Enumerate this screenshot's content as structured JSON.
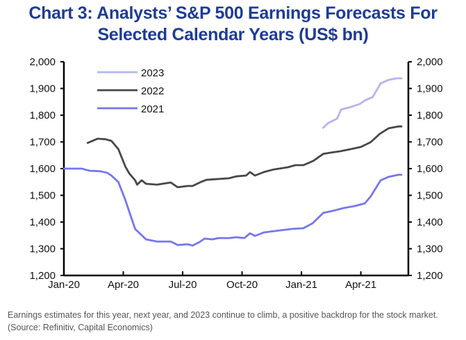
{
  "title_line1": "Chart 3: Analysts’ S&P 500 Earnings Forecasts For",
  "title_line2": "Selected Calendar Years (US$ bn)",
  "caption": "Earnings estimates for this year, next year, and 2023 continue to climb, a positive backdrop for the stock market. (Source: Refinitiv, Capital Economics)",
  "chart_data": {
    "type": "line",
    "title": "Chart 3: Analysts’ S&P 500 Earnings Forecasts For Selected Calendar Years (US$ bn)",
    "xlabel": "",
    "ylabel": "US$ bn",
    "x_unit": "months since Jan-20",
    "xlim": [
      0,
      17.4
    ],
    "ylim": [
      1200,
      2000
    ],
    "y_ticks": [
      1200,
      1300,
      1400,
      1500,
      1600,
      1700,
      1800,
      1900,
      2000
    ],
    "y_tick_labels": [
      "1,200",
      "1,300",
      "1,400",
      "1,500",
      "1,600",
      "1,700",
      "1,800",
      "1,900",
      "2,000"
    ],
    "x_ticks": [
      0,
      3,
      6,
      9,
      12,
      15
    ],
    "x_tick_labels": [
      "Jan-20",
      "Apr-20",
      "Jul-20",
      "Oct-20",
      "Jan-21",
      "Apr-21"
    ],
    "dual_y_axis": true,
    "grid": false,
    "legend_position": "top-left",
    "series": [
      {
        "name": "2023",
        "color": "#b4b4f2",
        "points": [
          [
            13.1,
            1753
          ],
          [
            13.35,
            1771
          ],
          [
            13.8,
            1787
          ],
          [
            14.0,
            1821
          ],
          [
            14.5,
            1831
          ],
          [
            14.95,
            1842
          ],
          [
            15.2,
            1855
          ],
          [
            15.6,
            1868
          ],
          [
            16.0,
            1919
          ],
          [
            16.4,
            1932
          ],
          [
            16.8,
            1938
          ],
          [
            17.05,
            1938
          ]
        ]
      },
      {
        "name": "2022",
        "color": "#474747",
        "points": [
          [
            1.2,
            1696
          ],
          [
            1.7,
            1712
          ],
          [
            2.1,
            1710
          ],
          [
            2.4,
            1704
          ],
          [
            2.75,
            1673
          ],
          [
            3.1,
            1608
          ],
          [
            3.3,
            1582
          ],
          [
            3.6,
            1556
          ],
          [
            3.7,
            1540
          ],
          [
            3.93,
            1556
          ],
          [
            4.15,
            1543
          ],
          [
            4.7,
            1540
          ],
          [
            5.4,
            1548
          ],
          [
            5.75,
            1530
          ],
          [
            6.25,
            1535
          ],
          [
            6.5,
            1535
          ],
          [
            6.95,
            1551
          ],
          [
            7.2,
            1558
          ],
          [
            8.35,
            1564
          ],
          [
            8.7,
            1571
          ],
          [
            9.2,
            1574
          ],
          [
            9.4,
            1587
          ],
          [
            9.65,
            1574
          ],
          [
            10.1,
            1587
          ],
          [
            10.6,
            1597
          ],
          [
            11.3,
            1605
          ],
          [
            11.7,
            1613
          ],
          [
            12.1,
            1613
          ],
          [
            12.6,
            1629
          ],
          [
            13.1,
            1655
          ],
          [
            13.5,
            1660
          ],
          [
            13.95,
            1665
          ],
          [
            14.5,
            1673
          ],
          [
            15.0,
            1681
          ],
          [
            15.5,
            1699
          ],
          [
            15.95,
            1730
          ],
          [
            16.4,
            1751
          ],
          [
            16.9,
            1758
          ],
          [
            17.05,
            1758
          ]
        ]
      },
      {
        "name": "2021",
        "color": "#7676ee",
        "points": [
          [
            0,
            1600
          ],
          [
            0.9,
            1600
          ],
          [
            1.05,
            1597
          ],
          [
            1.3,
            1592
          ],
          [
            1.85,
            1590
          ],
          [
            2.2,
            1584
          ],
          [
            2.4,
            1574
          ],
          [
            2.75,
            1550
          ],
          [
            3.1,
            1483
          ],
          [
            3.3,
            1439
          ],
          [
            3.6,
            1374
          ],
          [
            4.15,
            1335
          ],
          [
            4.7,
            1327
          ],
          [
            5.4,
            1327
          ],
          [
            5.75,
            1314
          ],
          [
            6.25,
            1317
          ],
          [
            6.5,
            1312
          ],
          [
            6.85,
            1325
          ],
          [
            7.1,
            1338
          ],
          [
            7.5,
            1335
          ],
          [
            7.8,
            1340
          ],
          [
            8.35,
            1340
          ],
          [
            8.7,
            1343
          ],
          [
            9.12,
            1340
          ],
          [
            9.4,
            1358
          ],
          [
            9.65,
            1348
          ],
          [
            10.1,
            1361
          ],
          [
            10.6,
            1366
          ],
          [
            11.5,
            1374
          ],
          [
            12.1,
            1377
          ],
          [
            12.56,
            1395
          ],
          [
            13.1,
            1434
          ],
          [
            13.6,
            1442
          ],
          [
            14.1,
            1452
          ],
          [
            14.7,
            1460
          ],
          [
            15.2,
            1470
          ],
          [
            15.5,
            1496
          ],
          [
            16.0,
            1556
          ],
          [
            16.4,
            1569
          ],
          [
            16.9,
            1577
          ],
          [
            17.05,
            1577
          ]
        ]
      }
    ]
  }
}
